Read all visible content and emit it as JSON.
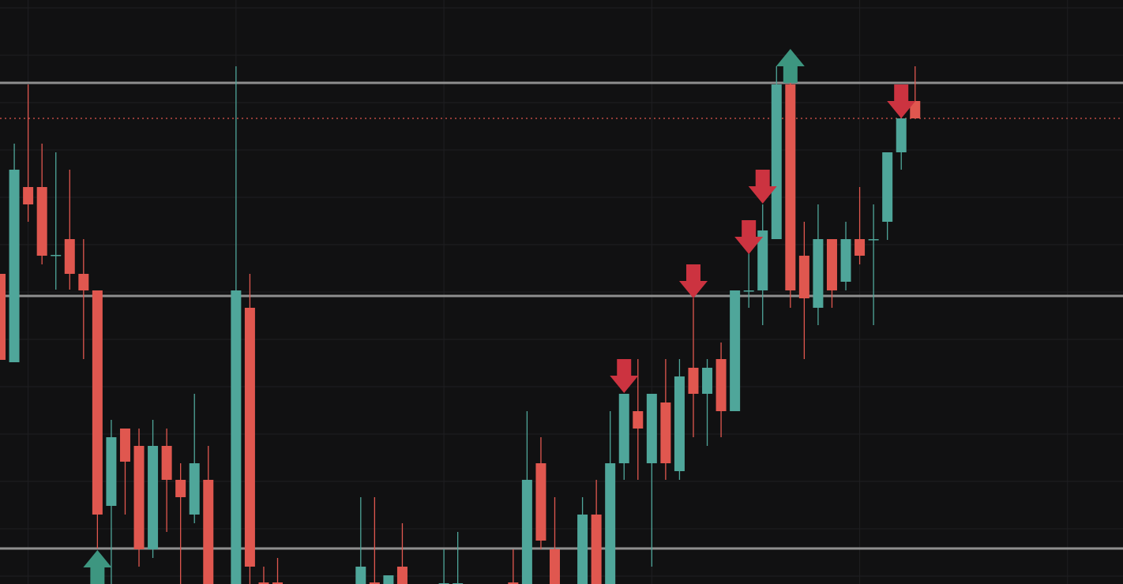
{
  "chart_data": {
    "type": "candlestick",
    "xlim": [
      -0.03,
      81
    ],
    "ylim": [
      0,
      740
    ],
    "xticks": [
      2,
      17,
      32,
      47,
      62,
      77
    ],
    "yticks": [
      730,
      670,
      610,
      550,
      490,
      430,
      370,
      310,
      250,
      190,
      130,
      70,
      10
    ],
    "grid": true,
    "up_color": "#4fa69a",
    "down_color": "#e0574f",
    "open": [
      393,
      281,
      503,
      503,
      416,
      437,
      393,
      372,
      99,
      197,
      175,
      44,
      175,
      132,
      88,
      132,
      null,
      0,
      350,
      2,
      2,
      null,
      null,
      null,
      null,
      null,
      0,
      2,
      0,
      22,
      null,
      null,
      0,
      0,
      null,
      null,
      null,
      2,
      0,
      153,
      44,
      null,
      0,
      88,
      0,
      153,
      219,
      153,
      230,
      143,
      274,
      241,
      285,
      219,
      372,
      372,
      437,
      633,
      416,
      350,
      437,
      383,
      437,
      437,
      459,
      547,
      612
    ],
    "high": [
      393,
      558,
      633,
      558,
      547,
      525,
      437,
      372,
      208,
      197,
      197,
      208,
      197,
      153,
      241,
      175,
      null,
      656,
      393,
      22,
      33,
      null,
      null,
      null,
      null,
      null,
      110,
      110,
      11,
      77,
      null,
      null,
      44,
      66,
      null,
      null,
      null,
      44,
      219,
      186,
      110,
      null,
      110,
      132,
      219,
      241,
      285,
      241,
      285,
      285,
      362,
      285,
      306,
      372,
      426,
      481,
      656,
      656,
      459,
      481,
      437,
      459,
      503,
      481,
      547,
      590,
      656
    ],
    "low": [
      284,
      281,
      459,
      405,
      373,
      373,
      285,
      45,
      0,
      88,
      22,
      33,
      66,
      0,
      77,
      0,
      null,
      0,
      0,
      0,
      0,
      null,
      null,
      null,
      null,
      null,
      0,
      0,
      0,
      0,
      null,
      null,
      0,
      0,
      null,
      null,
      null,
      0,
      0,
      44,
      0,
      null,
      0,
      0,
      0,
      132,
      132,
      22,
      132,
      132,
      186,
      175,
      186,
      219,
      350,
      328,
      437,
      350,
      285,
      328,
      350,
      372,
      405,
      328,
      436,
      525,
      590
    ],
    "close": [
      284,
      525,
      481,
      416,
      417,
      393,
      372,
      88,
      186,
      155,
      44,
      175,
      132,
      110,
      153,
      0,
      null,
      372,
      22,
      0,
      0,
      null,
      null,
      null,
      null,
      null,
      22,
      0,
      11,
      0,
      null,
      null,
      1,
      1,
      null,
      null,
      null,
      0,
      132,
      55,
      0,
      null,
      88,
      0,
      153,
      241,
      197,
      241,
      153,
      263,
      241,
      274,
      219,
      372,
      372,
      448,
      633,
      372,
      362,
      437,
      372,
      437,
      416,
      437,
      547,
      590,
      590
    ],
    "levels": [
      635,
      365,
      45
    ],
    "level_color": "#8f8f8f",
    "last_price": 590,
    "last_price_color": "#e0574f",
    "buy_color": "#3d9680",
    "sell_color": "#cc3340",
    "markers": [
      {
        "candle": 7,
        "value": 0,
        "direction": "up"
      },
      {
        "candle": 57,
        "value": 635,
        "direction": "up"
      },
      {
        "candle": 45,
        "value": 242,
        "direction": "down"
      },
      {
        "candle": 50,
        "value": 362,
        "direction": "down"
      },
      {
        "candle": 54,
        "value": 418,
        "direction": "down"
      },
      {
        "candle": 55,
        "value": 482,
        "direction": "down"
      },
      {
        "candle": 65,
        "value": 590,
        "direction": "down"
      }
    ]
  }
}
